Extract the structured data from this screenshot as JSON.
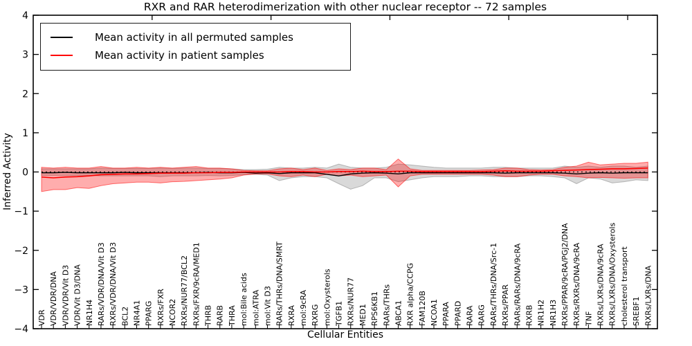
{
  "title": "RXR and RAR heterodimerization with other nuclear receptor -- 72 samples",
  "legend": {
    "items": [
      {
        "label": "Mean activity in all permuted samples",
        "color": "#000000"
      },
      {
        "label": "Mean activity in patient samples",
        "color": "#ff0000"
      }
    ]
  },
  "chart_data": {
    "type": "line",
    "title": "RXR and RAR heterodimerization with other nuclear receptor -- 72 samples",
    "xlabel": "Cellular Entities",
    "ylabel": "Inferred Activity",
    "ylim": [
      -4,
      4
    ],
    "yticks": [
      {
        "v": 4,
        "label": "4"
      },
      {
        "v": 3,
        "label": "3"
      },
      {
        "v": 2,
        "label": "2"
      },
      {
        "v": 1,
        "label": "1"
      },
      {
        "v": 0,
        "label": "0"
      },
      {
        "v": -1,
        "label": "−1"
      },
      {
        "v": -2,
        "label": "−2"
      },
      {
        "v": -3,
        "label": "−3"
      },
      {
        "v": -4,
        "label": "−4"
      }
    ],
    "x_axis": {
      "lim": [
        0,
        52.5
      ],
      "entity_offset": 0.7,
      "top_ticks": [
        10,
        20,
        30,
        40,
        50
      ]
    },
    "grid": false,
    "legend_position": "upper left",
    "zero_line": true,
    "categories": [
      "VDR",
      "VDR/VDR/DNA",
      "VDR/VDR/Vit D3",
      "VDR/Vit D3/DNA",
      "NR1H4",
      "RARs/VDR/DNA/Vit D3",
      "RXRs/VDR/DNA/Vit D3",
      "BCL2",
      "NR4A1",
      "PPARG",
      "RXRs/FXR",
      "NCOR2",
      "RXRs/NUR77/BCL2",
      "RXRs/FXR/9cRA/MED1",
      "THRB",
      "RARB",
      "THRA",
      "mol:Bile acids",
      "mol:ATRA",
      "mol:Vit D3",
      "RARs/THRs/DNA/SMRT",
      "RXRA",
      "mol:9cRA",
      "RXRG",
      "mol:Oxysterols",
      "TGFB1",
      "RXRs/NUR77",
      "MED1",
      "RPS6KB1",
      "RARs/THRs",
      "ABCA1",
      "RXR alpha/CCPG",
      "FAM120B",
      "NCOA1",
      "PPARA",
      "PPARD",
      "RARA",
      "RARG",
      "RARs/THRs/DNA/Src-1",
      "RXRs/PPAR",
      "RARs/RARs/DNA/9cRA",
      "RXRB",
      "NR1H2",
      "NR1H3",
      "RXRs/PPAR/9cRA/PGJ2/DNA",
      "RXRs/RXRs/DNA/9cRA",
      "TNF",
      "RXRs/LXRs/DNA/9cRA",
      "RXRs/LXRs/DNA/Oxysterols",
      "cholesterol transport",
      "SREBF1",
      "RXRs/LXRs/DNA"
    ],
    "series": [
      {
        "name": "Mean activity in all permuted samples",
        "color": "#000000",
        "width": 1.4,
        "values": [
          -0.02,
          -0.02,
          -0.01,
          -0.02,
          -0.02,
          -0.02,
          -0.02,
          -0.01,
          -0.02,
          -0.02,
          -0.02,
          -0.02,
          -0.02,
          -0.02,
          -0.01,
          -0.02,
          -0.02,
          -0.01,
          -0.03,
          -0.02,
          -0.04,
          -0.02,
          -0.02,
          -0.02,
          -0.06,
          -0.1,
          -0.05,
          -0.03,
          -0.02,
          -0.03,
          -0.05,
          -0.02,
          -0.02,
          -0.02,
          -0.02,
          -0.02,
          -0.02,
          -0.02,
          -0.02,
          -0.03,
          -0.02,
          -0.02,
          -0.02,
          -0.02,
          -0.03,
          -0.05,
          -0.03,
          -0.02,
          -0.03,
          -0.02,
          -0.02,
          -0.02
        ]
      },
      {
        "name": "Mean activity in patient samples",
        "color": "#ff0000",
        "width": 1.6,
        "values": [
          -0.13,
          -0.15,
          -0.13,
          -0.12,
          -0.1,
          -0.07,
          -0.06,
          -0.05,
          -0.05,
          -0.04,
          -0.03,
          -0.03,
          -0.03,
          -0.02,
          -0.02,
          -0.01,
          -0.01,
          0.0,
          0.0,
          0.0,
          0.0,
          0.01,
          0.01,
          0.0,
          0.0,
          0.01,
          0.01,
          0.02,
          0.01,
          0.01,
          0.02,
          0.02,
          0.01,
          0.01,
          0.01,
          0.01,
          0.01,
          0.01,
          0.02,
          0.03,
          0.02,
          0.02,
          0.02,
          0.03,
          0.04,
          0.05,
          0.06,
          0.07,
          0.08,
          0.08,
          0.09,
          0.1
        ]
      }
    ],
    "bands": [
      {
        "name": "permuted-std-band",
        "color": "#808080",
        "alpha": 0.3,
        "upper": [
          0.08,
          0.08,
          0.08,
          0.08,
          0.08,
          0.1,
          0.09,
          0.09,
          0.09,
          0.09,
          0.1,
          0.09,
          0.1,
          0.1,
          0.09,
          0.09,
          0.08,
          0.06,
          0.06,
          0.07,
          0.12,
          0.1,
          0.1,
          0.12,
          0.1,
          0.2,
          0.12,
          0.1,
          0.1,
          0.12,
          0.2,
          0.18,
          0.15,
          0.12,
          0.1,
          0.1,
          0.1,
          0.1,
          0.12,
          0.12,
          0.1,
          0.1,
          0.1,
          0.1,
          0.15,
          0.12,
          0.15,
          0.12,
          0.15,
          0.15,
          0.12,
          0.15
        ],
        "lower": [
          -0.09,
          -0.09,
          -0.09,
          -0.09,
          -0.09,
          -0.1,
          -0.1,
          -0.1,
          -0.1,
          -0.1,
          -0.12,
          -0.1,
          -0.1,
          -0.1,
          -0.09,
          -0.1,
          -0.09,
          -0.07,
          -0.06,
          -0.08,
          -0.22,
          -0.15,
          -0.12,
          -0.12,
          -0.15,
          -0.3,
          -0.44,
          -0.35,
          -0.15,
          -0.15,
          -0.25,
          -0.2,
          -0.15,
          -0.12,
          -0.12,
          -0.12,
          -0.1,
          -0.1,
          -0.12,
          -0.12,
          -0.12,
          -0.1,
          -0.1,
          -0.12,
          -0.15,
          -0.3,
          -0.15,
          -0.18,
          -0.28,
          -0.25,
          -0.2,
          -0.22
        ]
      },
      {
        "name": "patient-std-band",
        "color": "#ff0000",
        "alpha": 0.32,
        "upper": [
          0.12,
          0.1,
          0.12,
          0.1,
          0.1,
          0.14,
          0.1,
          0.1,
          0.12,
          0.1,
          0.12,
          0.1,
          0.12,
          0.14,
          0.1,
          0.1,
          0.08,
          0.04,
          0.03,
          0.03,
          0.08,
          0.1,
          0.06,
          0.1,
          0.04,
          0.08,
          0.06,
          0.1,
          0.1,
          0.06,
          0.33,
          0.08,
          0.04,
          0.04,
          0.04,
          0.04,
          0.04,
          0.05,
          0.06,
          0.1,
          0.1,
          0.06,
          0.05,
          0.06,
          0.12,
          0.15,
          0.25,
          0.18,
          0.2,
          0.22,
          0.22,
          0.25
        ],
        "lower": [
          -0.5,
          -0.45,
          -0.45,
          -0.4,
          -0.42,
          -0.35,
          -0.3,
          -0.28,
          -0.26,
          -0.26,
          -0.28,
          -0.25,
          -0.24,
          -0.22,
          -0.2,
          -0.18,
          -0.15,
          -0.08,
          -0.05,
          -0.05,
          -0.1,
          -0.12,
          -0.08,
          -0.12,
          -0.06,
          -0.1,
          -0.08,
          -0.12,
          -0.1,
          -0.08,
          -0.38,
          -0.1,
          -0.06,
          -0.06,
          -0.06,
          -0.06,
          -0.06,
          -0.06,
          -0.08,
          -0.12,
          -0.12,
          -0.08,
          -0.06,
          -0.06,
          -0.1,
          -0.12,
          -0.15,
          -0.14,
          -0.15,
          -0.16,
          -0.15,
          -0.15
        ]
      }
    ]
  }
}
